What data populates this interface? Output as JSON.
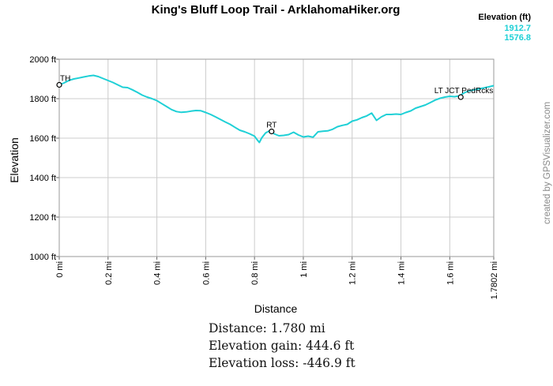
{
  "colors": {
    "line": "#1fd0d6",
    "grid": "#cccccc",
    "frame": "#999999",
    "legend_values": "#1fd0d6",
    "credit": "#888888"
  },
  "credit": "created by GPSVisualizer.com",
  "legend": {
    "title": "Elevation (ft)",
    "max": "1912.7",
    "min": "1576.8"
  },
  "stats": [
    "Distance: 1.780 mi",
    "Elevation gain: 444.6 ft",
    "Elevation loss: -446.9 ft"
  ],
  "chart_data": {
    "type": "line",
    "title": "King's Bluff Loop Trail - ArklahomaHiker.org",
    "xlabel": "Distance",
    "ylabel": "Elevation",
    "xlim": [
      0,
      1.7802
    ],
    "ylim": [
      1000,
      2000
    ],
    "x_ticks": [
      0,
      0.2,
      0.4,
      0.6,
      0.8,
      1.0,
      1.2,
      1.4,
      1.6,
      1.7802
    ],
    "x_tick_labels": [
      "0 mi",
      "0.2 mi",
      "0.4 mi",
      "0.6 mi",
      "0.8 mi",
      "1 mi",
      "1.2 mi",
      "1.4 mi",
      "1.6 mi",
      "1.7802 mi"
    ],
    "y_ticks": [
      1000,
      1200,
      1400,
      1600,
      1800,
      2000
    ],
    "y_tick_labels": [
      "1000 ft",
      "1200 ft",
      "1400 ft",
      "1600 ft",
      "1800 ft",
      "2000 ft"
    ],
    "grid": true,
    "series": [
      {
        "x": [
          0,
          0.02,
          0.04,
          0.06,
          0.08,
          0.1,
          0.12,
          0.14,
          0.16,
          0.18,
          0.2,
          0.22,
          0.24,
          0.26,
          0.28,
          0.3,
          0.32,
          0.34,
          0.36,
          0.38,
          0.4,
          0.42,
          0.44,
          0.46,
          0.48,
          0.5,
          0.52,
          0.54,
          0.56,
          0.58,
          0.6,
          0.62,
          0.64,
          0.66,
          0.68,
          0.7,
          0.72,
          0.74,
          0.76,
          0.78,
          0.8,
          0.81,
          0.82,
          0.83,
          0.845,
          0.86,
          0.87,
          0.88,
          0.9,
          0.92,
          0.94,
          0.96,
          0.98,
          1.0,
          1.02,
          1.04,
          1.06,
          1.08,
          1.1,
          1.12,
          1.14,
          1.16,
          1.18,
          1.2,
          1.22,
          1.24,
          1.26,
          1.28,
          1.3,
          1.32,
          1.34,
          1.36,
          1.38,
          1.4,
          1.42,
          1.44,
          1.46,
          1.48,
          1.5,
          1.52,
          1.54,
          1.56,
          1.58,
          1.6,
          1.62,
          1.64,
          1.66,
          1.68,
          1.7,
          1.72,
          1.74,
          1.76,
          1.7802
        ],
        "y": [
          1870,
          1880,
          1893,
          1900,
          1905,
          1910,
          1915,
          1918,
          1912,
          1902,
          1892,
          1882,
          1870,
          1858,
          1856,
          1845,
          1832,
          1818,
          1808,
          1800,
          1790,
          1775,
          1760,
          1745,
          1735,
          1731,
          1733,
          1737,
          1740,
          1739,
          1730,
          1720,
          1708,
          1695,
          1682,
          1670,
          1655,
          1640,
          1632,
          1622,
          1610,
          1593,
          1578,
          1602,
          1626,
          1637,
          1634,
          1622,
          1612,
          1614,
          1618,
          1630,
          1616,
          1606,
          1610,
          1605,
          1632,
          1635,
          1637,
          1645,
          1658,
          1665,
          1670,
          1686,
          1693,
          1704,
          1713,
          1727,
          1690,
          1708,
          1720,
          1720,
          1722,
          1720,
          1730,
          1738,
          1752,
          1760,
          1768,
          1780,
          1793,
          1802,
          1808,
          1812,
          1810,
          1815,
          1830,
          1840,
          1845,
          1850,
          1855,
          1860,
          1866
        ]
      }
    ],
    "annotations": [
      {
        "label": "TH",
        "x": 0,
        "y": 1870
      },
      {
        "label": "RT",
        "x": 0.87,
        "y": 1634
      },
      {
        "label": "LT JCT PedRcks",
        "x": 1.645,
        "y": 1808
      }
    ]
  }
}
